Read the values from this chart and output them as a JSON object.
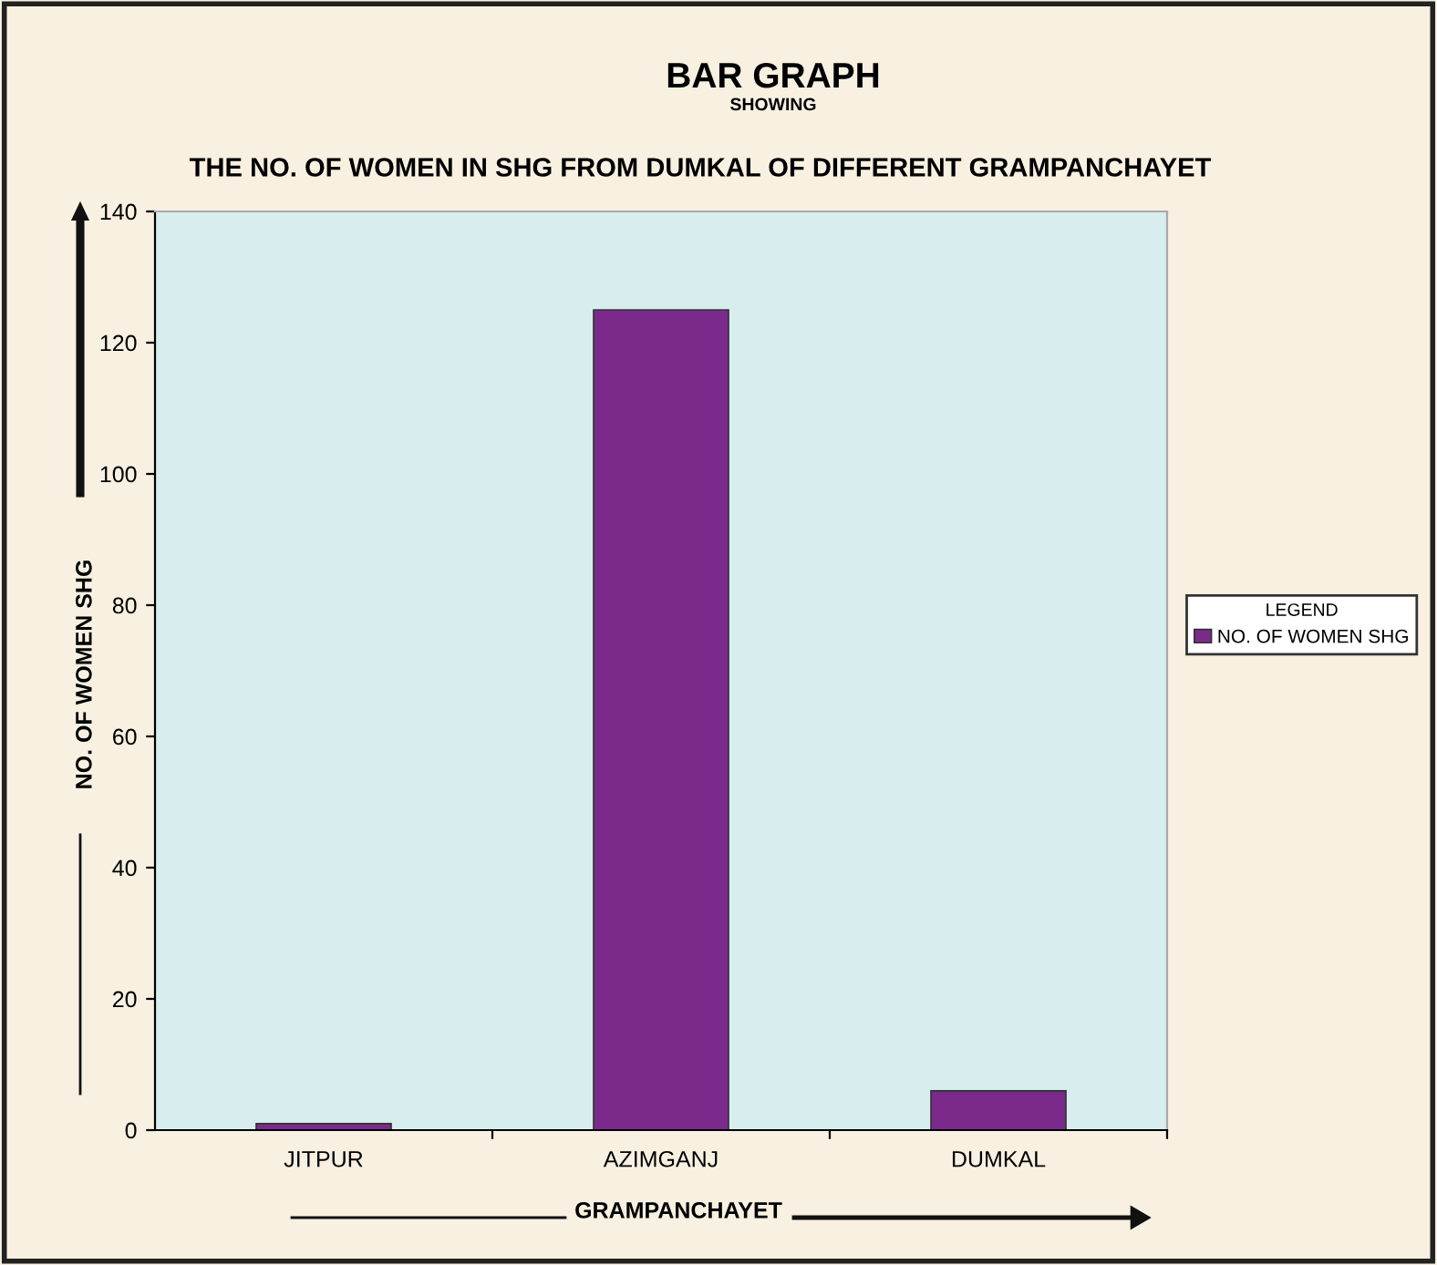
{
  "chart_data": {
    "type": "bar",
    "title": "BAR GRAPH",
    "subtitle": "SHOWING\nTHE NO. OF WOMEN IN SHG FROM DUMKAL OF DIFFERENT GRAMPANCHAYET",
    "xlabel": "GRAMPANCHAYET",
    "ylabel": "NO. OF WOMEN SHG",
    "legend_title": "LEGEND",
    "categories": [
      "JITPUR",
      "AZIMGANJ",
      "DUMKAL"
    ],
    "series": [
      {
        "name": "NO. OF WOMEN SHG",
        "color": "#7b2a8c",
        "values": [
          1,
          125,
          6
        ]
      }
    ],
    "ylim": [
      0,
      140
    ],
    "yticks": [
      0,
      20,
      40,
      60,
      80,
      100,
      120,
      140
    ],
    "grid": false,
    "legend": "right"
  }
}
